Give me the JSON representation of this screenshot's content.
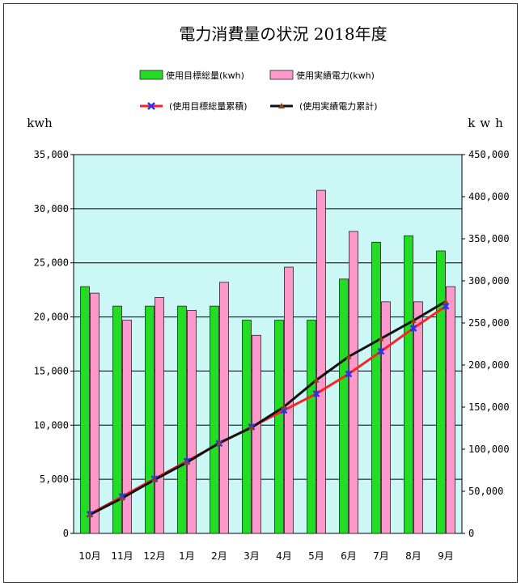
{
  "chart_data": {
    "type": "bar",
    "title": "電力消費量の状況 2018年度",
    "categories": [
      "10月",
      "11月",
      "12月",
      "1月",
      "2月",
      "3月",
      "4月",
      "5月",
      "6月",
      "7月",
      "8月",
      "9月"
    ],
    "bar_series": [
      {
        "name": "使用目標総量(kwh)",
        "color": "#22dd22",
        "values": [
          22800,
          21000,
          21000,
          21000,
          21000,
          19700,
          19700,
          19700,
          23500,
          26900,
          27500,
          26100
        ]
      },
      {
        "name": "使用実績電力(kwh)",
        "color": "#ff99cc",
        "values": [
          22200,
          19700,
          21800,
          20600,
          23200,
          18300,
          24600,
          31700,
          27900,
          21400,
          21400,
          22800
        ]
      }
    ],
    "line_series": [
      {
        "name": "(使用目標総量累積)",
        "color": "#ff2222",
        "marker_color": "#2233ff",
        "values": [
          22800,
          43800,
          64800,
          85800,
          106800,
          126500,
          146200,
          165900,
          189400,
          216300,
          243800,
          269900
        ]
      },
      {
        "name": "(使用実績電力累計)",
        "color": "#111111",
        "marker_color": "#8b4513",
        "values": [
          22200,
          41900,
          63700,
          84300,
          107500,
          125800,
          150400,
          182100,
          210000,
          231400,
          252800,
          275600
        ]
      }
    ],
    "ylabel_left": "kwh",
    "ylabel_right": "kwh",
    "ylim_left": [
      0,
      35000
    ],
    "ylim_right": [
      0,
      450000
    ],
    "yticks_left": [
      "0",
      "5,000",
      "10,000",
      "15,000",
      "20,000",
      "25,000",
      "30,000",
      "35,000"
    ],
    "yticks_right": [
      "0",
      "50,000",
      "100,000",
      "150,000",
      "200,000",
      "250,000",
      "300,000",
      "350,000",
      "400,000",
      "450,000"
    ],
    "legend_position": "top",
    "plot_background": "#ccf7f7"
  }
}
